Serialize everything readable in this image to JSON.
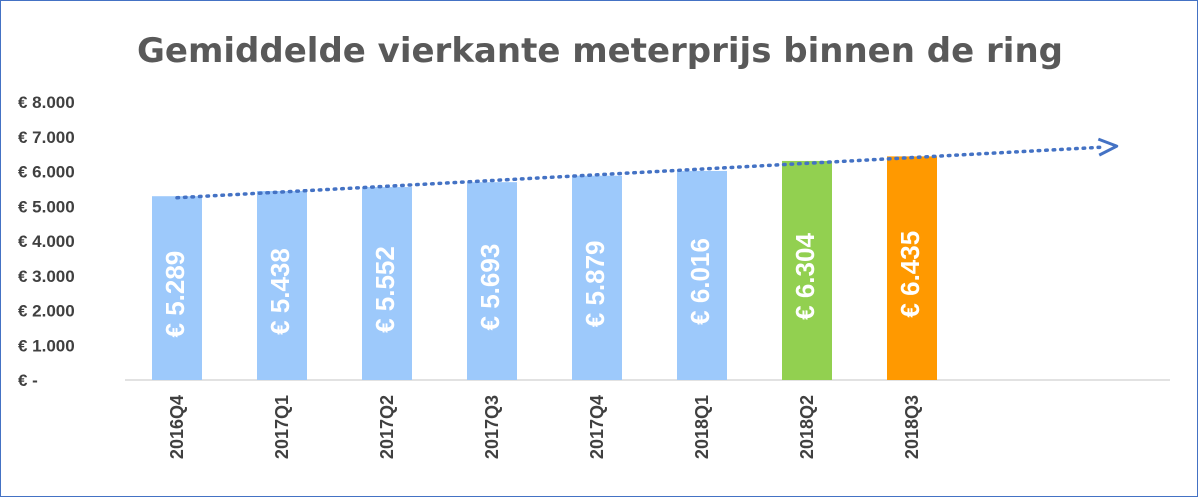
{
  "chart_data": {
    "type": "bar",
    "title": "Gemiddelde vierkante meterprijs binnen de ring",
    "categories": [
      "2016Q4",
      "2017Q1",
      "2017Q2",
      "2017Q3",
      "2017Q4",
      "2018Q1",
      "2018Q2",
      "2018Q3"
    ],
    "values": [
      5289,
      5438,
      5552,
      5693,
      5879,
      6016,
      6304,
      6435
    ],
    "data_labels": [
      "€ 5.289",
      "€ 5.438",
      "€ 5.552",
      "€ 5.693",
      "€ 5.879",
      "€ 6.016",
      "€ 6.304",
      "€ 6.435"
    ],
    "bar_colors": [
      "#9dc9fb",
      "#9dc9fb",
      "#9dc9fb",
      "#9dc9fb",
      "#9dc9fb",
      "#9dc9fb",
      "#92d050",
      "#ff9900"
    ],
    "ylim": [
      0,
      8000
    ],
    "y_ticks": [
      0,
      1000,
      2000,
      3000,
      4000,
      5000,
      6000,
      7000,
      8000
    ],
    "y_tick_labels": [
      "€ -",
      "€ 1.000",
      "€ 2.000",
      "€ 3.000",
      "€ 4.000",
      "€ 5.000",
      "€ 6.000",
      "€ 7.000",
      "€ 8.000"
    ],
    "xlabel": "",
    "ylabel": "",
    "grid": false,
    "trendline": {
      "style": "dotted",
      "color": "#4472c4",
      "arrow": true
    }
  }
}
